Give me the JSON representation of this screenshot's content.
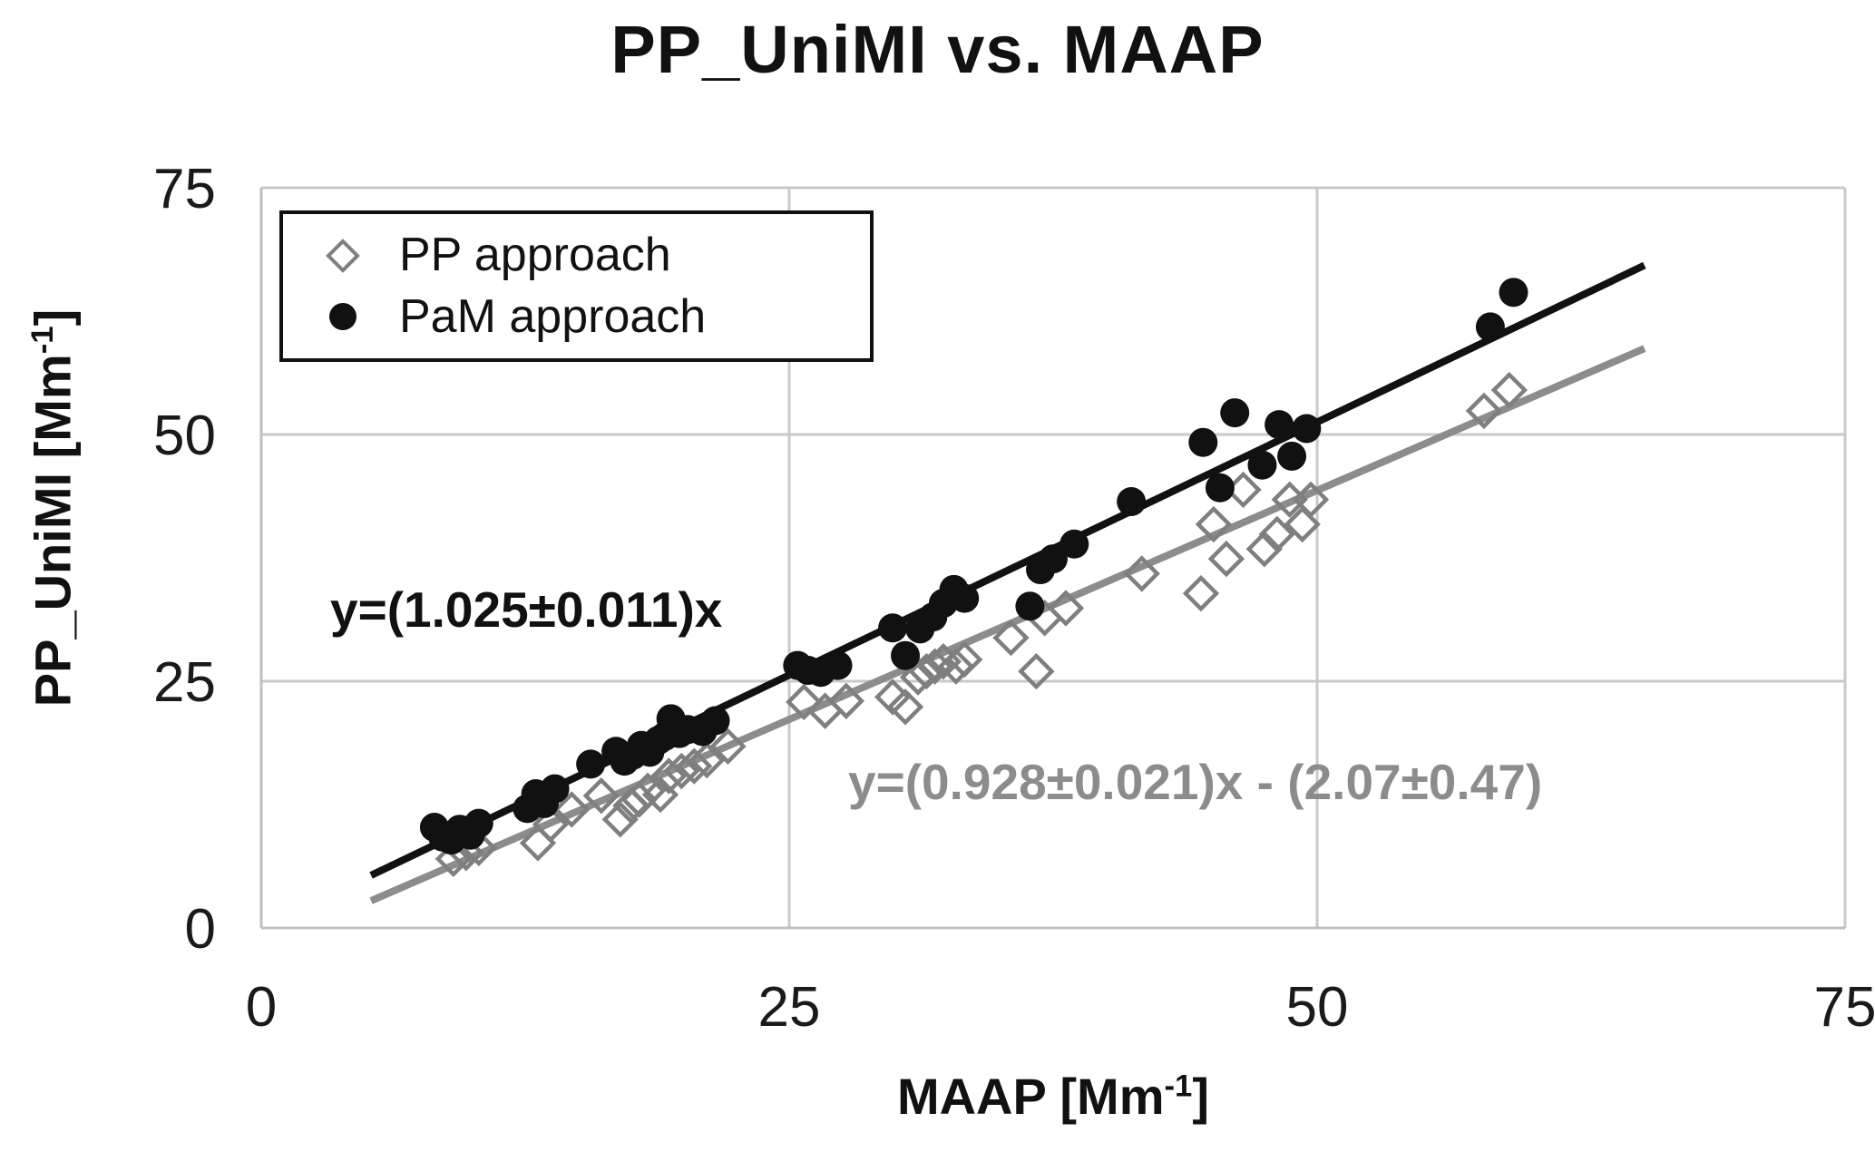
{
  "chart_data": {
    "type": "scatter",
    "title": "PP_UniMI vs. MAAP",
    "xlabel": "MAAP [Mm⁻¹]",
    "ylabel": "PP_UniMI [Mm⁻¹]",
    "xlim": [
      0,
      75
    ],
    "ylim": [
      0,
      75
    ],
    "x_ticks": [
      0,
      25,
      50,
      75
    ],
    "y_ticks": [
      0,
      25,
      50,
      75
    ],
    "grid": true,
    "legend_position": "top-left",
    "axis_labels": {
      "x_pre": "MAAP [Mm",
      "x_sup": "-1",
      "x_post": "]",
      "y_pre": "PP_UniMI [Mm",
      "y_sup": "-1",
      "y_post": "]"
    },
    "series": [
      {
        "name": "PP approach",
        "marker": "diamond",
        "color": "#7f7f7f",
        "points": [
          [
            9.1,
            7.0
          ],
          [
            9.7,
            7.6
          ],
          [
            10.3,
            8.1
          ],
          [
            13.1,
            8.6
          ],
          [
            13.7,
            10.5
          ],
          [
            14.7,
            12.0
          ],
          [
            16.1,
            13.4
          ],
          [
            17.0,
            11.0
          ],
          [
            17.5,
            12.4
          ],
          [
            17.9,
            13.0
          ],
          [
            18.3,
            13.9
          ],
          [
            18.9,
            13.5
          ],
          [
            19.3,
            15.4
          ],
          [
            19.9,
            15.9
          ],
          [
            20.5,
            16.4
          ],
          [
            21.1,
            17.0
          ],
          [
            22.1,
            18.4
          ],
          [
            25.7,
            22.9
          ],
          [
            26.7,
            22.0
          ],
          [
            27.7,
            23.0
          ],
          [
            29.9,
            23.4
          ],
          [
            30.5,
            22.4
          ],
          [
            31.1,
            25.4
          ],
          [
            31.5,
            26.0
          ],
          [
            31.9,
            26.5
          ],
          [
            32.3,
            27.0
          ],
          [
            32.9,
            26.5
          ],
          [
            33.3,
            27.2
          ],
          [
            35.5,
            29.4
          ],
          [
            36.7,
            26.0
          ],
          [
            37.1,
            31.4
          ],
          [
            38.1,
            32.4
          ],
          [
            41.7,
            35.9
          ],
          [
            44.5,
            33.9
          ],
          [
            45.1,
            40.9
          ],
          [
            45.7,
            37.4
          ],
          [
            46.5,
            44.4
          ],
          [
            47.5,
            38.4
          ],
          [
            48.1,
            39.9
          ],
          [
            48.7,
            43.4
          ],
          [
            49.3,
            40.9
          ],
          [
            49.7,
            43.4
          ],
          [
            57.9,
            52.4
          ],
          [
            59.1,
            54.5
          ]
        ]
      },
      {
        "name": "PaM approach",
        "marker": "circle",
        "color": "#111111",
        "points": [
          [
            8.2,
            10.2
          ],
          [
            8.6,
            9.2
          ],
          [
            9.0,
            8.9
          ],
          [
            9.4,
            10.0
          ],
          [
            9.9,
            9.4
          ],
          [
            10.3,
            10.6
          ],
          [
            12.6,
            12.1
          ],
          [
            13.0,
            13.6
          ],
          [
            13.4,
            12.6
          ],
          [
            13.9,
            14.1
          ],
          [
            15.6,
            16.6
          ],
          [
            16.8,
            17.9
          ],
          [
            17.2,
            16.9
          ],
          [
            17.6,
            17.5
          ],
          [
            18.0,
            18.5
          ],
          [
            18.4,
            17.8
          ],
          [
            18.8,
            19.0
          ],
          [
            19.1,
            19.4
          ],
          [
            19.4,
            21.2
          ],
          [
            19.8,
            19.7
          ],
          [
            20.2,
            20.1
          ],
          [
            20.9,
            19.9
          ],
          [
            21.5,
            21.0
          ],
          [
            25.4,
            26.6
          ],
          [
            25.9,
            26.1
          ],
          [
            26.5,
            25.9
          ],
          [
            27.3,
            26.6
          ],
          [
            29.9,
            30.4
          ],
          [
            30.5,
            27.6
          ],
          [
            31.2,
            30.3
          ],
          [
            31.8,
            31.5
          ],
          [
            32.3,
            32.9
          ],
          [
            32.8,
            34.3
          ],
          [
            33.3,
            33.4
          ],
          [
            36.4,
            32.6
          ],
          [
            36.9,
            36.3
          ],
          [
            37.5,
            37.4
          ],
          [
            38.5,
            38.9
          ],
          [
            41.2,
            43.2
          ],
          [
            44.6,
            49.2
          ],
          [
            45.4,
            44.6
          ],
          [
            46.1,
            52.2
          ],
          [
            47.4,
            46.9
          ],
          [
            48.2,
            51.0
          ],
          [
            48.8,
            47.8
          ],
          [
            49.5,
            50.6
          ],
          [
            58.2,
            60.9
          ],
          [
            59.3,
            64.4
          ]
        ]
      }
    ],
    "fits": [
      {
        "label": "y=(1.025±0.011)x",
        "slope": 1.025,
        "intercept": 0,
        "color": "#111111",
        "x_range": [
          5.2,
          65.5
        ]
      },
      {
        "label": "y=(0.928±0.021)x - (2.07±0.47)",
        "slope": 0.928,
        "intercept": -2.07,
        "color": "#8c8c8c",
        "x_range": [
          5.2,
          65.5
        ]
      }
    ],
    "annotations": [
      {
        "text": "y=(1.025±0.011)x",
        "color": "#111111"
      },
      {
        "text": "y=(0.928±0.021)x - (2.07±0.47)",
        "color": "#8c8c8c"
      }
    ],
    "style": {
      "grid_color": "#c9c9c9",
      "axis_color": "#bfbfbf",
      "background": "#ffffff"
    }
  }
}
